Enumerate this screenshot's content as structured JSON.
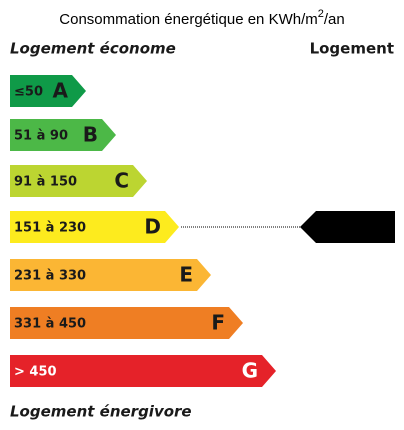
{
  "title": {
    "text": "Consommation énergétique en KWh/m",
    "sup": "2",
    "tail": "/an"
  },
  "top_left": "Logement économe",
  "top_right": "Logement",
  "bottom": "Logement énergivore",
  "current_class": "D",
  "classes": [
    {
      "range": "≤50",
      "letter": "A",
      "color": "#0f9a48",
      "text_color": "#1a1a1a"
    },
    {
      "range": "51 à 90",
      "letter": "B",
      "color": "#4cb847",
      "text_color": "#1a1a1a"
    },
    {
      "range": "91 à 150",
      "letter": "C",
      "color": "#bcd531",
      "text_color": "#1a1a1a"
    },
    {
      "range": "151 à 230",
      "letter": "D",
      "color": "#fdeb1e",
      "text_color": "#1a1a1a"
    },
    {
      "range": "231 à 330",
      "letter": "E",
      "color": "#fbb634",
      "text_color": "#1a1a1a"
    },
    {
      "range": "331 à 450",
      "letter": "F",
      "color": "#ef7e23",
      "text_color": "#1a1a1a"
    },
    {
      "range": "> 450",
      "letter": "G",
      "color": "#e52229",
      "text_color": "#ffffff"
    }
  ]
}
